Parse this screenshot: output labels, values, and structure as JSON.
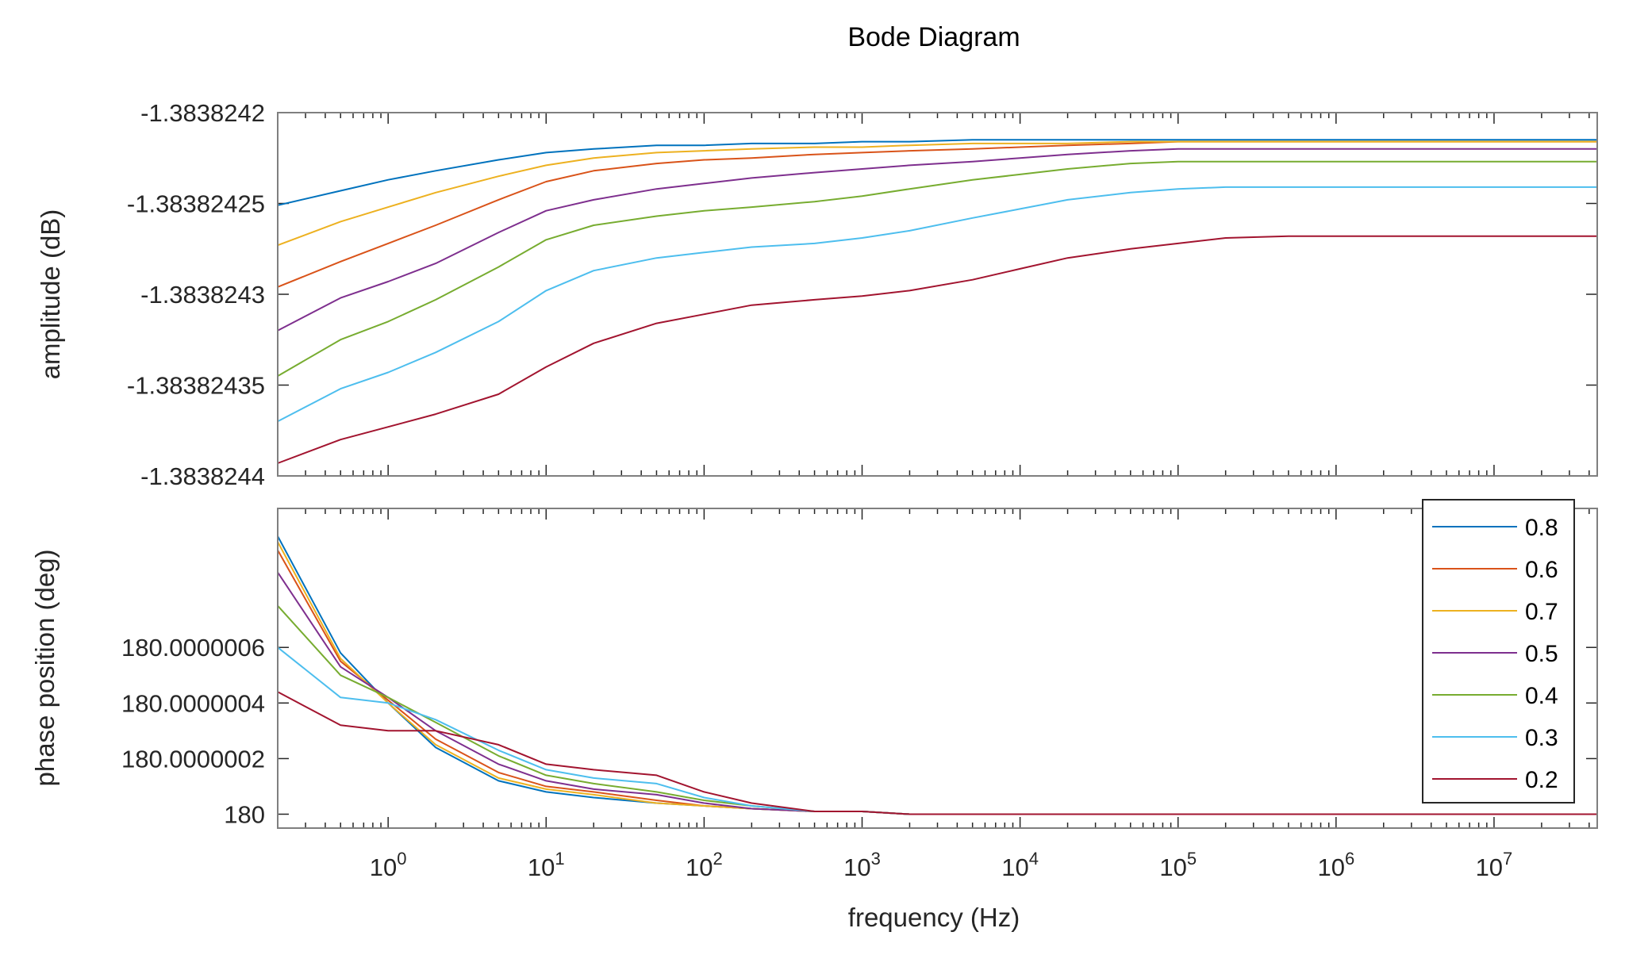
{
  "chart_data": {
    "type": "line",
    "title": "Bode Diagram",
    "xlabel": "frequency  (Hz)",
    "xscale": "log",
    "xlim": [
      0.2,
      45000000
    ],
    "x_tick_labels": [
      {
        "base": "10",
        "exp": "0",
        "value": 1
      },
      {
        "base": "10",
        "exp": "1",
        "value": 10
      },
      {
        "base": "10",
        "exp": "2",
        "value": 100
      },
      {
        "base": "10",
        "exp": "3",
        "value": 1000
      },
      {
        "base": "10",
        "exp": "4",
        "value": 10000
      },
      {
        "base": "10",
        "exp": "5",
        "value": 100000
      },
      {
        "base": "10",
        "exp": "6",
        "value": 1000000
      },
      {
        "base": "10",
        "exp": "7",
        "value": 10000000
      }
    ],
    "x": [
      0.2,
      0.5,
      1,
      2,
      5,
      10,
      20,
      50,
      100,
      200,
      500,
      1000,
      2000,
      5000,
      10000,
      20000,
      50000,
      100000,
      200000,
      500000,
      1000000,
      2000000,
      5000000,
      10000000,
      20000000,
      45000000
    ],
    "legend": {
      "placement": "top-right",
      "entries": [
        "0.8",
        "0.6",
        "0.7",
        "0.5",
        "0.4",
        "0.3",
        "0.2"
      ]
    },
    "subplots": [
      {
        "name": "amplitude",
        "ylabel": "amplitude (dB)",
        "ylim": [
          -1.3838244,
          -1.3838242
        ],
        "y_tick_labels": [
          {
            "label": "-1.3838242",
            "value": -1.3838242
          },
          {
            "label": "-1.38382425",
            "value": -1.38382425
          },
          {
            "label": "-1.3838243",
            "value": -1.3838243
          },
          {
            "label": "-1.38382435",
            "value": -1.38382435
          },
          {
            "label": "-1.3838244",
            "value": -1.3838244
          }
        ],
        "series": [
          {
            "name": "0.8",
            "color": "#0072BD",
            "values": [
              -1.383824251,
              -1.383824243,
              -1.383824237,
              -1.383824232,
              -1.383824226,
              -1.383824222,
              -1.38382422,
              -1.383824218,
              -1.383824218,
              -1.383824217,
              -1.383824217,
              -1.383824216,
              -1.383824216,
              -1.383824215,
              -1.383824215,
              -1.383824215,
              -1.383824215,
              -1.383824215,
              -1.383824215,
              -1.383824215,
              -1.383824215,
              -1.383824215,
              -1.383824215,
              -1.383824215,
              -1.383824215,
              -1.383824215
            ]
          },
          {
            "name": "0.6",
            "color": "#D95319",
            "values": [
              -1.383824296,
              -1.383824282,
              -1.383824272,
              -1.383824262,
              -1.383824248,
              -1.383824238,
              -1.383824232,
              -1.383824228,
              -1.383824226,
              -1.383824225,
              -1.383824223,
              -1.383824222,
              -1.383824221,
              -1.38382422,
              -1.383824219,
              -1.383824218,
              -1.383824217,
              -1.383824216,
              -1.383824216,
              -1.383824216,
              -1.383824216,
              -1.383824216,
              -1.383824216,
              -1.383824216,
              -1.383824216,
              -1.383824216
            ]
          },
          {
            "name": "0.7",
            "color": "#EDB120",
            "values": [
              -1.383824273,
              -1.38382426,
              -1.383824252,
              -1.383824244,
              -1.383824235,
              -1.383824229,
              -1.383824225,
              -1.383824222,
              -1.383824221,
              -1.38382422,
              -1.383824219,
              -1.383824219,
              -1.383824218,
              -1.383824217,
              -1.383824217,
              -1.383824217,
              -1.383824216,
              -1.383824216,
              -1.383824216,
              -1.383824216,
              -1.383824216,
              -1.383824216,
              -1.383824216,
              -1.383824216,
              -1.383824216,
              -1.383824216
            ]
          },
          {
            "name": "0.5",
            "color": "#7E2F8E",
            "values": [
              -1.38382432,
              -1.383824302,
              -1.383824293,
              -1.383824283,
              -1.383824266,
              -1.383824254,
              -1.383824248,
              -1.383824242,
              -1.383824239,
              -1.383824236,
              -1.383824233,
              -1.383824231,
              -1.383824229,
              -1.383824227,
              -1.383824225,
              -1.383824223,
              -1.383824221,
              -1.38382422,
              -1.38382422,
              -1.38382422,
              -1.38382422,
              -1.38382422,
              -1.38382422,
              -1.38382422,
              -1.38382422,
              -1.38382422
            ]
          },
          {
            "name": "0.4",
            "color": "#77AC30",
            "values": [
              -1.383824345,
              -1.383824325,
              -1.383824315,
              -1.383824303,
              -1.383824285,
              -1.38382427,
              -1.383824262,
              -1.383824257,
              -1.383824254,
              -1.383824252,
              -1.383824249,
              -1.383824246,
              -1.383824242,
              -1.383824237,
              -1.383824234,
              -1.383824231,
              -1.383824228,
              -1.383824227,
              -1.383824227,
              -1.383824227,
              -1.383824227,
              -1.383824227,
              -1.383824227,
              -1.383824227,
              -1.383824227,
              -1.383824227
            ]
          },
          {
            "name": "0.3",
            "color": "#4DBEEE",
            "values": [
              -1.38382437,
              -1.383824352,
              -1.383824343,
              -1.383824332,
              -1.383824315,
              -1.383824298,
              -1.383824287,
              -1.38382428,
              -1.383824277,
              -1.383824274,
              -1.383824272,
              -1.383824269,
              -1.383824265,
              -1.383824258,
              -1.383824253,
              -1.383824248,
              -1.383824244,
              -1.383824242,
              -1.383824241,
              -1.383824241,
              -1.383824241,
              -1.383824241,
              -1.383824241,
              -1.383824241,
              -1.383824241,
              -1.383824241
            ]
          },
          {
            "name": "0.2",
            "color": "#A2142F",
            "values": [
              -1.383824393,
              -1.38382438,
              -1.383824373,
              -1.383824366,
              -1.383824355,
              -1.38382434,
              -1.383824327,
              -1.383824316,
              -1.383824311,
              -1.383824306,
              -1.383824303,
              -1.383824301,
              -1.383824298,
              -1.383824292,
              -1.383824286,
              -1.38382428,
              -1.383824275,
              -1.383824272,
              -1.383824269,
              -1.383824268,
              -1.383824268,
              -1.383824268,
              -1.383824268,
              -1.383824268,
              -1.383824268,
              -1.383824268
            ]
          }
        ]
      },
      {
        "name": "phase",
        "ylabel": "phase position (deg)",
        "ylim": [
          179.99999995,
          180.0000011
        ],
        "y_tick_labels": [
          {
            "label": "180",
            "value": 180
          },
          {
            "label": "180.0000002",
            "value": 180.0000002
          },
          {
            "label": "180.0000004",
            "value": 180.0000004
          },
          {
            "label": "180.0000006",
            "value": 180.0000006
          }
        ],
        "series": [
          {
            "name": "0.8",
            "color": "#0072BD",
            "values": [
              180.000001,
              180.00000058,
              180.0000004,
              180.00000024,
              180.00000012,
              180.00000008,
              180.00000006,
              180.00000004,
              180.00000003,
              180.00000002,
              180.00000001,
              180.00000001,
              180.0,
              180.0,
              180.0,
              180.0,
              180.0,
              180.0,
              180.0,
              180.0,
              180.0,
              180.0,
              180.0,
              180.0,
              180.0,
              180.0
            ]
          },
          {
            "name": "0.6",
            "color": "#D95319",
            "values": [
              180.00000095,
              180.00000055,
              180.00000041,
              180.00000027,
              180.00000015,
              180.0000001,
              180.00000008,
              180.00000005,
              180.00000003,
              180.00000002,
              180.00000001,
              180.00000001,
              180.0,
              180.0,
              180.0,
              180.0,
              180.0,
              180.0,
              180.0,
              180.0,
              180.0,
              180.0,
              180.0,
              180.0,
              180.0,
              180.0
            ]
          },
          {
            "name": "0.7",
            "color": "#EDB120",
            "values": [
              180.00000098,
              180.00000056,
              180.0000004,
              180.00000025,
              180.00000013,
              180.00000009,
              180.00000007,
              180.00000004,
              180.00000003,
              180.00000002,
              180.00000001,
              180.00000001,
              180.0,
              180.0,
              180.0,
              180.0,
              180.0,
              180.0,
              180.0,
              180.0,
              180.0,
              180.0,
              180.0,
              180.0,
              180.0,
              180.0
            ]
          },
          {
            "name": "0.5",
            "color": "#7E2F8E",
            "values": [
              180.00000087,
              180.00000053,
              180.00000042,
              180.0000003,
              180.00000018,
              180.00000012,
              180.00000009,
              180.00000007,
              180.00000004,
              180.00000002,
              180.00000001,
              180.00000001,
              180.0,
              180.0,
              180.0,
              180.0,
              180.0,
              180.0,
              180.0,
              180.0,
              180.0,
              180.0,
              180.0,
              180.0,
              180.0,
              180.0
            ]
          },
          {
            "name": "0.4",
            "color": "#77AC30",
            "values": [
              180.00000075,
              180.0000005,
              180.00000042,
              180.00000033,
              180.00000021,
              180.00000014,
              180.00000011,
              180.00000008,
              180.00000005,
              180.00000003,
              180.00000001,
              180.00000001,
              180.0,
              180.0,
              180.0,
              180.0,
              180.0,
              180.0,
              180.0,
              180.0,
              180.0,
              180.0,
              180.0,
              180.0,
              180.0,
              180.0
            ]
          },
          {
            "name": "0.3",
            "color": "#4DBEEE",
            "values": [
              180.0000006,
              180.00000042,
              180.0000004,
              180.00000034,
              180.00000023,
              180.00000016,
              180.00000013,
              180.00000011,
              180.00000006,
              180.00000003,
              180.00000001,
              180.00000001,
              180.0,
              180.0,
              180.0,
              180.0,
              180.0,
              180.0,
              180.0,
              180.0,
              180.0,
              180.0,
              180.0,
              180.0,
              180.0,
              180.0
            ]
          },
          {
            "name": "0.2",
            "color": "#A2142F",
            "values": [
              180.00000044,
              180.00000032,
              180.0000003,
              180.0000003,
              180.00000025,
              180.00000018,
              180.00000016,
              180.00000014,
              180.00000008,
              180.00000004,
              180.00000001,
              180.00000001,
              180.0,
              180.0,
              180.0,
              180.0,
              180.0,
              180.0,
              180.0,
              180.0,
              180.0,
              180.0,
              180.0,
              180.0,
              180.0,
              180.0
            ]
          }
        ]
      }
    ]
  }
}
